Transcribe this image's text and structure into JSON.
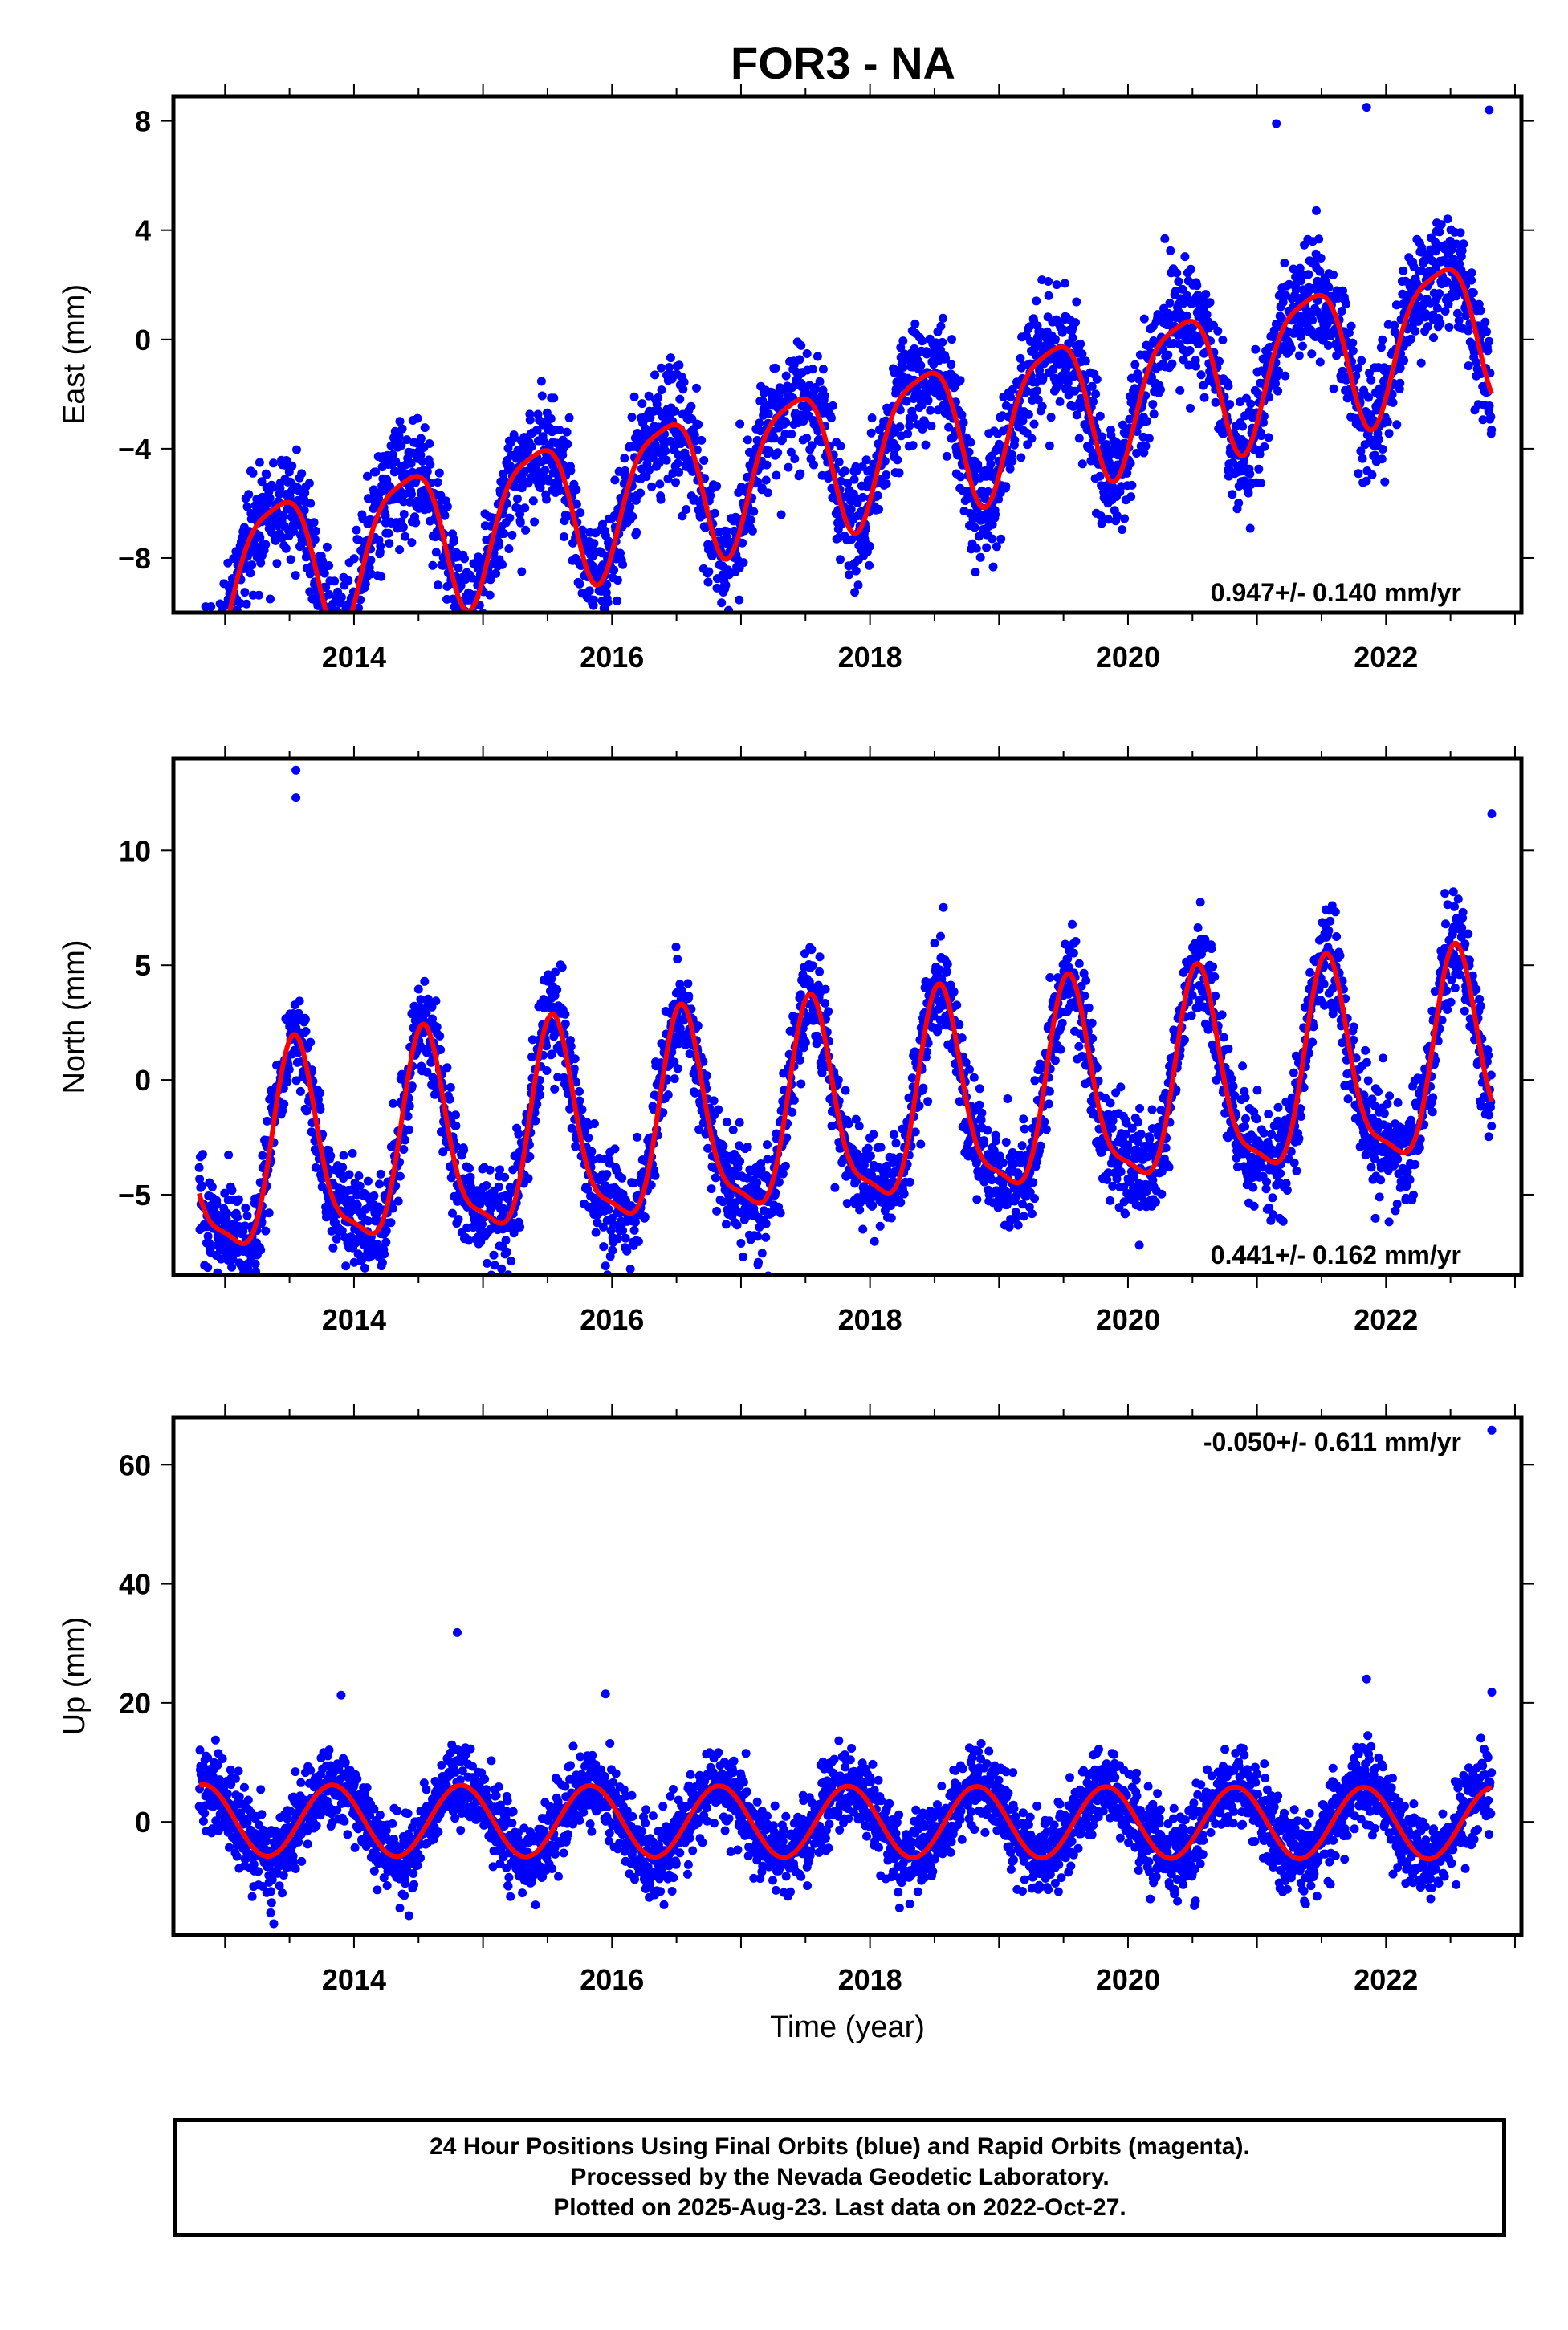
{
  "title": "FOR3 - NA",
  "colors": {
    "final_orbits": "#0000ff",
    "model": "#ff0000",
    "frame": "#000000"
  },
  "chart_data": [
    {
      "type": "scatter",
      "ylabel": "East (mm)",
      "xlim": [
        2012.6,
        2023.05
      ],
      "ylim": [
        -10,
        8.9
      ],
      "xticks": [
        2014,
        2016,
        2018,
        2020,
        2022
      ],
      "yticks": [
        -8,
        -4,
        0,
        4,
        8
      ],
      "rate_label": "0.947+/- 0.140 mm/yr",
      "model": {
        "x0": 2012.8,
        "x1": 2022.82,
        "offset": -4.0,
        "slope": 0.947,
        "amp_annual": 2.6,
        "phase_annual": 2013.15,
        "amp_semi": 0.6,
        "phase_semi": 2013.0
      },
      "scatter_sd": 1.05,
      "outliers": [
        {
          "x": 2021.85,
          "y": 8.5
        },
        {
          "x": 2022.8,
          "y": 8.4
        },
        {
          "x": 2021.15,
          "y": 7.9
        },
        {
          "x": 2015.3,
          "y": -8.5
        },
        {
          "x": 2013.35,
          "y": -9.5
        }
      ]
    },
    {
      "type": "scatter",
      "ylabel": "North (mm)",
      "xlim": [
        2012.6,
        2023.05
      ],
      "ylim": [
        -8.5,
        14
      ],
      "xticks": [
        2014,
        2016,
        2018,
        2020,
        2022
      ],
      "yticks": [
        -5,
        0,
        5,
        10
      ],
      "rate_label": "0.441+/- 0.162 mm/yr",
      "model": {
        "x0": 2012.8,
        "x1": 2022.82,
        "offset": -1.6,
        "slope": 0.441,
        "amp_annual": 4.3,
        "phase_annual": 2013.3,
        "amp_semi": 1.2,
        "phase_semi": 2013.4
      },
      "scatter_sd": 1.1,
      "outliers": [
        {
          "x": 2013.55,
          "y": 13.5
        },
        {
          "x": 2013.55,
          "y": 12.3
        },
        {
          "x": 2022.82,
          "y": 11.6
        },
        {
          "x": 2015.95,
          "y": -8.1
        }
      ]
    },
    {
      "type": "scatter",
      "ylabel": "Up (mm)",
      "xlabel": "Time (year)",
      "xlim": [
        2012.6,
        2023.05
      ],
      "ylim": [
        -19,
        68
      ],
      "xticks": [
        2014,
        2016,
        2018,
        2020,
        2022
      ],
      "yticks": [
        0,
        20,
        40,
        60
      ],
      "rate_label": "-0.050+/- 0.611 mm/yr",
      "model": {
        "x0": 2012.8,
        "x1": 2022.82,
        "offset": 0.0,
        "slope": -0.05,
        "amp_annual": 6.0,
        "phase_annual": 2012.58,
        "amp_semi": 0.0,
        "phase_semi": 2013.0
      },
      "scatter_sd": 3.4,
      "outliers": [
        {
          "x": 2022.82,
          "y": 65.8
        },
        {
          "x": 2014.8,
          "y": 31.8
        },
        {
          "x": 2021.85,
          "y": 24.0
        },
        {
          "x": 2022.82,
          "y": 21.8
        },
        {
          "x": 2015.95,
          "y": 21.5
        },
        {
          "x": 2013.9,
          "y": 21.3
        }
      ]
    }
  ],
  "footer": {
    "line1": "24 Hour Positions Using Final Orbits (blue) and Rapid Orbits (magenta).",
    "line2": "Processed by the Nevada Geodetic Laboratory.",
    "line3": "Plotted on 2025-Aug-23. Last data on 2022-Oct-27."
  }
}
